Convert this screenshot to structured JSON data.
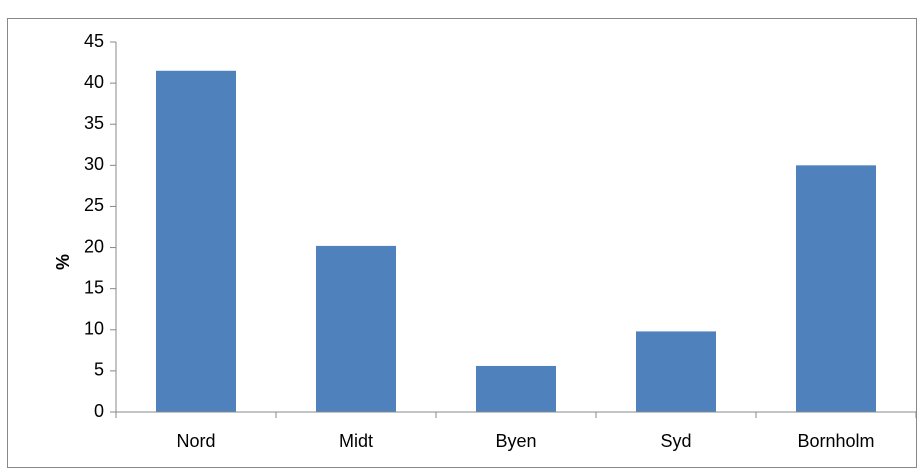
{
  "chart_data": {
    "type": "bar",
    "ylabel": "%",
    "categories": [
      "Nord",
      "Midt",
      "Byen",
      "Syd",
      "Bornholm"
    ],
    "values": [
      41.5,
      20.2,
      5.6,
      9.8,
      30
    ],
    "color": "#4f81bd",
    "ylim": [
      0,
      45
    ],
    "yticks": [
      0,
      5,
      10,
      15,
      20,
      25,
      30,
      35,
      40,
      45
    ],
    "grid": false
  }
}
